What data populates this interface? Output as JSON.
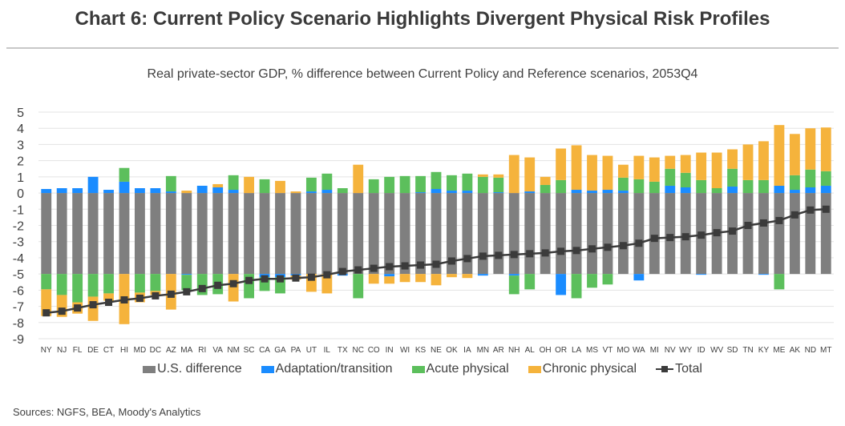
{
  "header": {
    "title": "Chart 6: Current Policy Scenario Highlights Divergent Physical Risk Profiles",
    "subtitle": "Real private-sector GDP, % difference between Current Policy and Reference scenarios, 2053Q4"
  },
  "footer": {
    "source": "Sources: NGFS, BEA, Moody's Analytics"
  },
  "colors": {
    "us_difference": "#7f7f7f",
    "adaptation": "#1a8cff",
    "acute": "#5cbf5c",
    "chronic": "#f5b33c",
    "total": "#3b3b3b",
    "grid": "#e3e3e3"
  },
  "chart_data": {
    "type": "bar",
    "stacked": true,
    "title": "Real private-sector GDP, % difference between Current Policy and Reference scenarios, 2053Q4",
    "xlabel": "",
    "ylabel": "",
    "ylim": [
      -9,
      5
    ],
    "yticks": [
      5,
      4,
      3,
      2,
      1,
      0,
      -1,
      -2,
      -3,
      -4,
      -5,
      -6,
      -7,
      -8,
      -9
    ],
    "grid": true,
    "legend_position": "bottom",
    "categories": [
      "NY",
      "NJ",
      "FL",
      "DE",
      "CT",
      "HI",
      "MD",
      "DC",
      "AZ",
      "MA",
      "RI",
      "VA",
      "NM",
      "SC",
      "CA",
      "GA",
      "PA",
      "UT",
      "IL",
      "TX",
      "NC",
      "CO",
      "IN",
      "WI",
      "KS",
      "NE",
      "OK",
      "IA",
      "MN",
      "AR",
      "NH",
      "AL",
      "OH",
      "OR",
      "LA",
      "MS",
      "VT",
      "MO",
      "WA",
      "MI",
      "NV",
      "WY",
      "ID",
      "WV",
      "SD",
      "TN",
      "KY",
      "ME",
      "AK",
      "ND",
      "MT"
    ],
    "us_difference": -5.0,
    "series": [
      {
        "name": "U.S. difference",
        "key": "us",
        "values": [
          -5,
          -5,
          -5,
          -5,
          -5,
          -5,
          -5,
          -5,
          -5,
          -5,
          -5,
          -5,
          -5,
          -5,
          -5,
          -5,
          -5,
          -5,
          -5,
          -5,
          -5,
          -5,
          -5,
          -5,
          -5,
          -5,
          -5,
          -5,
          -5,
          -5,
          -5,
          -5,
          -5,
          -5,
          -5,
          -5,
          -5,
          -5,
          -5,
          -5,
          -5,
          -5,
          -5,
          -5,
          -5,
          -5,
          -5,
          -5,
          -5,
          -5,
          -5
        ]
      },
      {
        "name": "Adaptation/transition",
        "key": "adapt",
        "pos": [
          0.25,
          0.3,
          0.3,
          1.0,
          0.2,
          0.7,
          0.3,
          0.3,
          0.1,
          0.0,
          0.45,
          0.35,
          0.2,
          0.0,
          0.0,
          0.0,
          0.0,
          0.1,
          0.2,
          0.0,
          0.0,
          0.0,
          0.0,
          0.0,
          0.05,
          0.25,
          0.15,
          0.15,
          0.0,
          0.05,
          0.0,
          0.1,
          0.0,
          0.0,
          0.2,
          0.15,
          0.2,
          0.15,
          0.0,
          0.0,
          0.45,
          0.35,
          0.0,
          0.0,
          0.4,
          0.0,
          0.0,
          0.45,
          0.2,
          0.35,
          0.45
        ],
        "neg": [
          0,
          0,
          0,
          0,
          0,
          0,
          0,
          0,
          0,
          -0.05,
          0,
          0,
          0,
          0,
          -0.2,
          -0.2,
          -0.1,
          0,
          0,
          -0.1,
          0,
          0,
          -0.15,
          0,
          0,
          0,
          0,
          0,
          -0.1,
          0,
          -0.1,
          0,
          0,
          -1.3,
          0,
          0,
          0,
          0,
          -0.4,
          0,
          0,
          0,
          -0.05,
          0,
          0,
          0,
          -0.05,
          0,
          0,
          0,
          0
        ]
      },
      {
        "name": "Acute physical",
        "key": "acute",
        "pos": [
          0,
          0,
          0,
          0,
          0,
          0.85,
          0,
          0,
          0.95,
          0,
          0,
          0,
          0.9,
          0,
          0.85,
          0,
          0,
          0.85,
          1.0,
          0.3,
          0,
          0.85,
          1.0,
          1.05,
          1.0,
          1.05,
          0.95,
          1.05,
          1.0,
          0.9,
          0,
          0,
          0.5,
          0.8,
          0,
          0,
          0,
          0.8,
          0.85,
          0.7,
          1.05,
          0.9,
          0.8,
          0.3,
          1.1,
          0.8,
          0.8,
          0,
          0.9,
          1.1,
          0.9
        ],
        "neg": [
          -0.95,
          -1.3,
          -1.75,
          -1.4,
          -1.2,
          0,
          -1.15,
          -1.05,
          0,
          -0.95,
          -1.3,
          -1.25,
          0,
          -1.5,
          -0.85,
          -1.0,
          0,
          0,
          0,
          0,
          -1.5,
          0,
          0,
          0,
          0,
          0,
          0,
          0,
          0,
          0,
          -1.15,
          -0.95,
          0,
          0,
          -1.5,
          -0.85,
          -0.65,
          0,
          0,
          0,
          0,
          0,
          0,
          0,
          0,
          0,
          0,
          -0.95,
          0,
          0,
          0
        ]
      },
      {
        "name": "Chronic physical",
        "key": "chronic",
        "pos": [
          0,
          0,
          0,
          0,
          0,
          0,
          0,
          0,
          0,
          0.15,
          0,
          0.2,
          0,
          1.0,
          0,
          0.75,
          0.1,
          0,
          0,
          0,
          1.75,
          0,
          0,
          0,
          0,
          0,
          0,
          0,
          0.15,
          0.2,
          2.35,
          2.1,
          0.5,
          1.95,
          2.75,
          2.2,
          2.1,
          0.8,
          1.45,
          1.5,
          0.8,
          1.1,
          1.7,
          2.2,
          1.2,
          2.2,
          2.4,
          3.75,
          2.55,
          2.55,
          2.7
        ],
        "neg": [
          -1.65,
          -1.35,
          -0.7,
          -1.5,
          -0.45,
          -3.1,
          -0.6,
          -0.25,
          -2.2,
          0,
          0,
          0,
          -1.7,
          0,
          0,
          0,
          -0.25,
          -1.1,
          -1.2,
          0,
          0,
          -0.6,
          -0.45,
          -0.5,
          -0.5,
          -0.7,
          -0.2,
          -0.25,
          0,
          0,
          0,
          0,
          0,
          0,
          0,
          0,
          0,
          0,
          0,
          0,
          0,
          0,
          0,
          0,
          0,
          0,
          0,
          0,
          0,
          0,
          0
        ]
      },
      {
        "name": "Total",
        "key": "total",
        "type": "line",
        "values": [
          -7.4,
          -7.3,
          -7.1,
          -6.9,
          -6.75,
          -6.6,
          -6.5,
          -6.35,
          -6.25,
          -6.1,
          -5.9,
          -5.7,
          -5.6,
          -5.4,
          -5.3,
          -5.3,
          -5.25,
          -5.2,
          -5.05,
          -4.85,
          -4.75,
          -4.65,
          -4.55,
          -4.5,
          -4.45,
          -4.4,
          -4.2,
          -4.05,
          -3.9,
          -3.85,
          -3.8,
          -3.75,
          -3.7,
          -3.6,
          -3.55,
          -3.45,
          -3.35,
          -3.25,
          -3.1,
          -2.8,
          -2.75,
          -2.7,
          -2.6,
          -2.45,
          -2.35,
          -2.0,
          -1.85,
          -1.7,
          -1.35,
          -1.05,
          -1.0
        ]
      }
    ]
  },
  "legend": [
    {
      "key": "us",
      "label": "U.S. difference"
    },
    {
      "key": "adapt",
      "label": "Adaptation/transition"
    },
    {
      "key": "acute",
      "label": "Acute physical"
    },
    {
      "key": "chronic",
      "label": "Chronic physical"
    },
    {
      "key": "total",
      "label": "Total"
    }
  ]
}
